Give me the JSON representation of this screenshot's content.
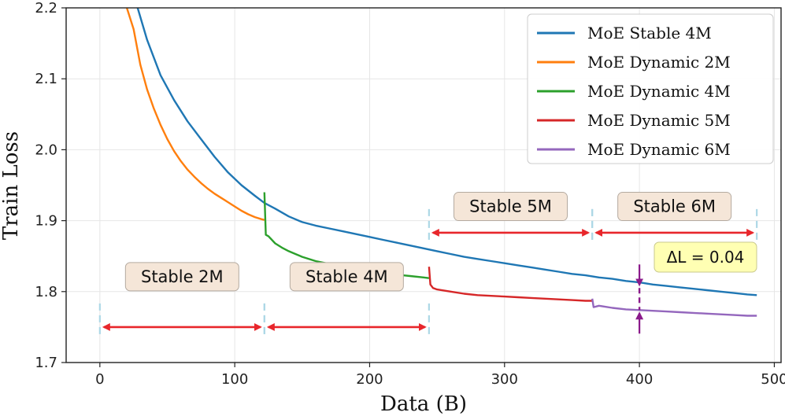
{
  "chart_data": {
    "type": "line",
    "xlabel": "Data (B)",
    "ylabel": "Train Loss",
    "xlim": [
      -25,
      505
    ],
    "ylim": [
      1.7,
      2.2
    ],
    "xticks": [
      0,
      100,
      200,
      300,
      400,
      500
    ],
    "xtick_labels": [
      "0",
      "100",
      "200",
      "300",
      "400",
      "500"
    ],
    "yticks": [
      1.7,
      1.8,
      1.9,
      2.0,
      2.1,
      2.2
    ],
    "ytick_labels": [
      "1.7",
      "1.8",
      "1.9",
      "2.0",
      "2.1",
      "2.2"
    ],
    "grid": true,
    "legend_position": "top-right",
    "series": [
      {
        "name": "MoE Stable 4M",
        "color": "#1f77b4",
        "points": [
          [
            28,
            2.2
          ],
          [
            35,
            2.155
          ],
          [
            45,
            2.105
          ],
          [
            55,
            2.07
          ],
          [
            65,
            2.04
          ],
          [
            75,
            2.015
          ],
          [
            85,
            1.99
          ],
          [
            95,
            1.968
          ],
          [
            105,
            1.95
          ],
          [
            115,
            1.935
          ],
          [
            122,
            1.925
          ],
          [
            130,
            1.917
          ],
          [
            140,
            1.906
          ],
          [
            150,
            1.898
          ],
          [
            160,
            1.893
          ],
          [
            170,
            1.889
          ],
          [
            180,
            1.885
          ],
          [
            190,
            1.881
          ],
          [
            200,
            1.877
          ],
          [
            210,
            1.873
          ],
          [
            220,
            1.869
          ],
          [
            230,
            1.865
          ],
          [
            240,
            1.861
          ],
          [
            250,
            1.857
          ],
          [
            260,
            1.853
          ],
          [
            270,
            1.849
          ],
          [
            280,
            1.846
          ],
          [
            290,
            1.843
          ],
          [
            300,
            1.84
          ],
          [
            310,
            1.837
          ],
          [
            320,
            1.834
          ],
          [
            330,
            1.831
          ],
          [
            340,
            1.828
          ],
          [
            350,
            1.825
          ],
          [
            360,
            1.823
          ],
          [
            370,
            1.82
          ],
          [
            380,
            1.818
          ],
          [
            390,
            1.815
          ],
          [
            400,
            1.813
          ],
          [
            410,
            1.81
          ],
          [
            420,
            1.808
          ],
          [
            430,
            1.806
          ],
          [
            440,
            1.804
          ],
          [
            450,
            1.802
          ],
          [
            460,
            1.8
          ],
          [
            470,
            1.798
          ],
          [
            480,
            1.796
          ],
          [
            487,
            1.795
          ]
        ]
      },
      {
        "name": "MoE Dynamic 2M",
        "color": "#ff7f0e",
        "points": [
          [
            20,
            2.2
          ],
          [
            25,
            2.17
          ],
          [
            30,
            2.12
          ],
          [
            35,
            2.085
          ],
          [
            40,
            2.058
          ],
          [
            45,
            2.035
          ],
          [
            50,
            2.015
          ],
          [
            55,
            1.998
          ],
          [
            60,
            1.984
          ],
          [
            65,
            1.972
          ],
          [
            70,
            1.962
          ],
          [
            75,
            1.953
          ],
          [
            80,
            1.945
          ],
          [
            85,
            1.938
          ],
          [
            90,
            1.932
          ],
          [
            95,
            1.926
          ],
          [
            100,
            1.92
          ],
          [
            105,
            1.914
          ],
          [
            110,
            1.909
          ],
          [
            115,
            1.905
          ],
          [
            120,
            1.902
          ],
          [
            122,
            1.901
          ]
        ]
      },
      {
        "name": "MoE Dynamic 4M",
        "color": "#2ca02c",
        "points": [
          [
            122,
            1.94
          ],
          [
            123,
            1.88
          ],
          [
            125,
            1.878
          ],
          [
            130,
            1.868
          ],
          [
            135,
            1.862
          ],
          [
            140,
            1.857
          ],
          [
            145,
            1.853
          ],
          [
            150,
            1.849
          ],
          [
            160,
            1.843
          ],
          [
            170,
            1.839
          ],
          [
            180,
            1.835
          ],
          [
            190,
            1.832
          ],
          [
            200,
            1.829
          ],
          [
            210,
            1.827
          ],
          [
            220,
            1.824
          ],
          [
            230,
            1.822
          ],
          [
            240,
            1.82
          ],
          [
            244,
            1.819
          ]
        ]
      },
      {
        "name": "MoE Dynamic 5M",
        "color": "#d62728",
        "points": [
          [
            244,
            1.835
          ],
          [
            245,
            1.81
          ],
          [
            247,
            1.805
          ],
          [
            250,
            1.803
          ],
          [
            260,
            1.8
          ],
          [
            270,
            1.797
          ],
          [
            280,
            1.795
          ],
          [
            290,
            1.794
          ],
          [
            300,
            1.793
          ],
          [
            310,
            1.792
          ],
          [
            320,
            1.791
          ],
          [
            330,
            1.79
          ],
          [
            340,
            1.789
          ],
          [
            350,
            1.788
          ],
          [
            360,
            1.787
          ],
          [
            365,
            1.787
          ]
        ]
      },
      {
        "name": "MoE Dynamic 6M",
        "color": "#9467bd",
        "points": [
          [
            365,
            1.79
          ],
          [
            366,
            1.778
          ],
          [
            370,
            1.78
          ],
          [
            380,
            1.777
          ],
          [
            390,
            1.775
          ],
          [
            400,
            1.774
          ],
          [
            410,
            1.773
          ],
          [
            420,
            1.772
          ],
          [
            430,
            1.771
          ],
          [
            440,
            1.77
          ],
          [
            450,
            1.769
          ],
          [
            460,
            1.768
          ],
          [
            470,
            1.767
          ],
          [
            480,
            1.766
          ],
          [
            487,
            1.766
          ]
        ]
      }
    ],
    "phases": [
      {
        "label": "Stable 2M",
        "start": 0,
        "end": 122,
        "label_y": 1.821
      },
      {
        "label": "Stable 4M",
        "start": 122,
        "end": 244,
        "label_y": 1.821
      },
      {
        "label": "Stable 5M",
        "start": 244,
        "end": 365,
        "label_y": 1.92
      },
      {
        "label": "Stable 6M",
        "start": 365,
        "end": 487,
        "label_y": 1.92
      }
    ],
    "phase_arrow_y": [
      1.75,
      1.75,
      1.883,
      1.883
    ],
    "boundary_color": "#add8e6",
    "arrow_color": "#e8262b",
    "delta_annotation": {
      "label": "ΔL = 0.04",
      "x": 400,
      "y_top": 1.805,
      "y_bottom": 1.774,
      "color": "#8b1a8b"
    }
  }
}
